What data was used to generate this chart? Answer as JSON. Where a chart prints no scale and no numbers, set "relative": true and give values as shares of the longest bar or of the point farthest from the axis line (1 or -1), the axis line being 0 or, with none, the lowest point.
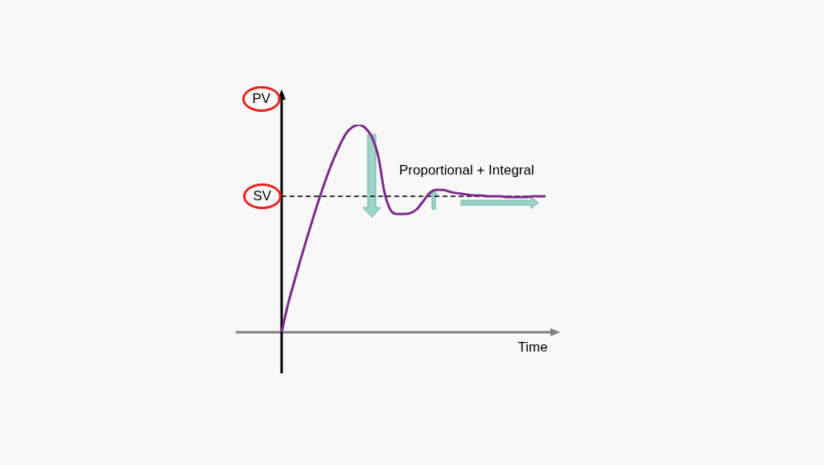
{
  "chart_data": {
    "type": "line",
    "relative": true,
    "categories": [
      null,
      null,
      null,
      null,
      null,
      null,
      null,
      null,
      null,
      null,
      null,
      null,
      null,
      null,
      null,
      null,
      null,
      null,
      null,
      null,
      null,
      null,
      null,
      null,
      null,
      null,
      null,
      null,
      null,
      null,
      null,
      null,
      null,
      null,
      null,
      null,
      null,
      null,
      null,
      null,
      null,
      null
    ],
    "series": [
      {
        "color": "#7d2a8c",
        "values": [
          0,
          0.136,
          0.248,
          0.357,
          0.461,
          0.562,
          0.659,
          0.748,
          0.829,
          0.899,
          0.957,
          0.988,
          1,
          0.984,
          0.942,
          0.849,
          0.671,
          0.585,
          0.57,
          0.57,
          0.574,
          0.593,
          0.632,
          0.671,
          0.686,
          0.686,
          0.678,
          0.671,
          0.667,
          0.663,
          0.659,
          0.659,
          0.655,
          0.655,
          0.655,
          0.651,
          0.651,
          0.651,
          0.651,
          0.655,
          0.655,
          0.655
        ]
      }
    ],
    "ylabel": "PV",
    "xlabel": "Time",
    "annotations": [
      "Proportional + Integral"
    ],
    "ref_lines": [
      {
        "axis": "y",
        "value": 0.655,
        "label": "SV",
        "color": "#000000",
        "line_style": "dashed"
      }
    ],
    "legend": false,
    "marker": "none",
    "line_style": "solid"
  }
}
